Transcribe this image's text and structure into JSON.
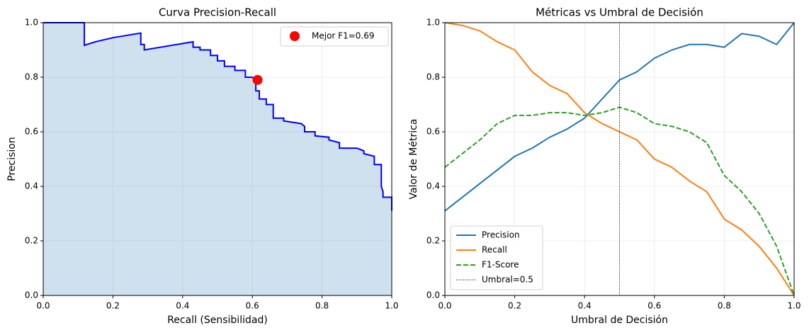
{
  "chart_data": [
    {
      "type": "line",
      "title": "Curva Precision-Recall",
      "x_label": "Recall (Sensibilidad)",
      "y_label": "Precision",
      "x": [
        0,
        0.118,
        0.118,
        0.15,
        0.2,
        0.28,
        0.28,
        0.29,
        0.29,
        0.43,
        0.43,
        0.45,
        0.45,
        0.48,
        0.48,
        0.5,
        0.5,
        0.52,
        0.52,
        0.55,
        0.55,
        0.58,
        0.58,
        0.6,
        0.61,
        0.61,
        0.62,
        0.62,
        0.64,
        0.64,
        0.66,
        0.66,
        0.69,
        0.69,
        0.74,
        0.75,
        0.75,
        0.78,
        0.78,
        0.82,
        0.82,
        0.85,
        0.85,
        0.9,
        0.92,
        0.92,
        0.95,
        0.95,
        0.97,
        0.97,
        0.975,
        0.975,
        1,
        1
      ],
      "values": [
        1,
        1,
        0.917,
        0.93,
        0.945,
        0.962,
        0.92,
        0.92,
        0.9,
        0.93,
        0.91,
        0.91,
        0.9,
        0.9,
        0.88,
        0.88,
        0.86,
        0.86,
        0.84,
        0.84,
        0.825,
        0.825,
        0.8,
        0.8,
        0.79,
        0.75,
        0.75,
        0.72,
        0.72,
        0.7,
        0.7,
        0.65,
        0.65,
        0.64,
        0.63,
        0.62,
        0.6,
        0.6,
        0.585,
        0.58,
        0.57,
        0.56,
        0.54,
        0.54,
        0.53,
        0.52,
        0.51,
        0.48,
        0.48,
        0.4,
        0.38,
        0.36,
        0.36,
        0.31
      ],
      "color": "#0000ff",
      "fill": "#cfe0ee",
      "marker": {
        "name": "Mejor F1=0.69",
        "x": 0.615,
        "y": 0.79,
        "color": "#ff0000"
      },
      "legend": "upper right",
      "xlim": [
        0,
        1
      ],
      "ylim": [
        0,
        1
      ],
      "xticks": [
        {
          "value": 0,
          "label": "0.0"
        },
        0.2,
        0.4,
        0.6,
        0.8,
        {
          "value": 1,
          "label": "1.0"
        }
      ],
      "yticks": [
        {
          "value": 0,
          "label": "0.0"
        },
        0.2,
        0.4,
        0.6,
        0.8,
        {
          "value": 1,
          "label": "1.0"
        }
      ],
      "grid": true
    },
    {
      "type": "line",
      "title": "Métricas vs Umbral de Decisión",
      "x_label": "Umbral de Decisión",
      "y_label": "Valor de Métrica",
      "x": [
        0,
        0.05,
        0.1,
        0.15,
        0.2,
        0.25,
        0.3,
        0.35,
        0.4,
        0.45,
        0.5,
        0.55,
        0.6,
        0.65,
        0.7,
        0.75,
        0.8,
        0.85,
        0.9,
        0.95,
        1
      ],
      "series": [
        {
          "name": "Precision",
          "color": "#1f77b4",
          "values": [
            0.31,
            0.36,
            0.41,
            0.46,
            0.51,
            0.54,
            0.58,
            0.61,
            0.65,
            0.72,
            0.79,
            0.82,
            0.87,
            0.9,
            0.92,
            0.92,
            0.91,
            0.96,
            0.95,
            0.92,
            1
          ]
        },
        {
          "name": "Recall",
          "color": "#ff7f0e",
          "values": [
            1,
            0.99,
            0.97,
            0.93,
            0.9,
            0.82,
            0.77,
            0.74,
            0.67,
            0.63,
            0.6,
            0.57,
            0.5,
            0.47,
            0.42,
            0.38,
            0.28,
            0.24,
            0.18,
            0.1,
            0
          ]
        },
        {
          "name": "F1-Score",
          "color": "#2ca02c",
          "dashed": true,
          "values": [
            0.47,
            0.52,
            0.57,
            0.63,
            0.66,
            0.66,
            0.67,
            0.67,
            0.66,
            0.67,
            0.69,
            0.67,
            0.63,
            0.62,
            0.6,
            0.56,
            0.44,
            0.38,
            0.3,
            0.18,
            0
          ]
        }
      ],
      "vline": {
        "name": "Umbral=0.5",
        "x": 0.5,
        "color": "#000000"
      },
      "legend": "lower left",
      "xlim": [
        0,
        1
      ],
      "ylim": [
        0,
        1
      ],
      "xticks": [
        {
          "value": 0,
          "label": "0.0"
        },
        0.2,
        0.4,
        0.6,
        0.8,
        {
          "value": 1,
          "label": "1.0"
        }
      ],
      "yticks": [
        {
          "value": 0,
          "label": "0.0"
        },
        0.2,
        0.4,
        0.6,
        0.8,
        {
          "value": 1,
          "label": "1.0"
        }
      ],
      "grid": true
    }
  ]
}
